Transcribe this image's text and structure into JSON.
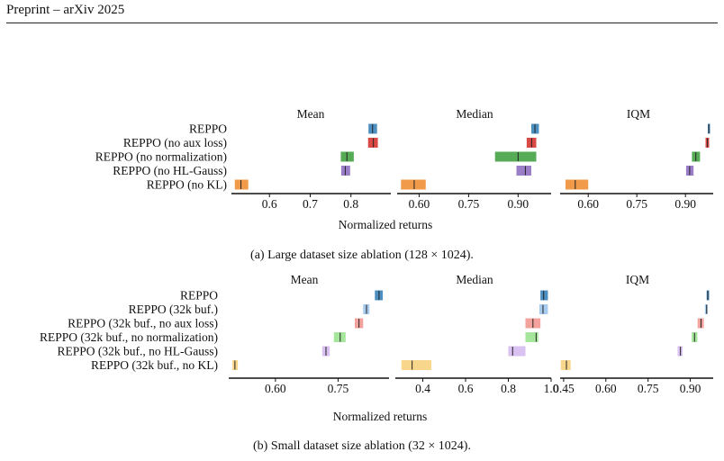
{
  "header": {
    "text": "Preprint – arXiv 2025"
  },
  "xlabel": "Normalized returns",
  "captions": [
    "(a) Large dataset size ablation (128 × 1024).",
    "(b) Small dataset size ablation (32 × 1024)."
  ],
  "chart_data": [
    {
      "type": "interval",
      "methods": [
        "REPPO",
        "REPPO (no aux loss)",
        "REPPO (no normalization)",
        "REPPO (no HL-Gauss)",
        "REPPO (no KL)"
      ],
      "colors": [
        "#4c8fc0",
        "#d94a46",
        "#57ab57",
        "#9b7ec8",
        "#f09a4a"
      ],
      "panels": [
        {
          "title": "Mean",
          "ticks": [
            {
              "v": 0.6,
              "label": "0.6"
            },
            {
              "v": 0.7,
              "label": "0.7"
            },
            {
              "v": 0.8,
              "label": "0.8"
            }
          ],
          "intervals": [
            [
              0.843,
              0.864,
              0.853
            ],
            [
              0.842,
              0.866,
              0.855
            ],
            [
              0.775,
              0.807,
              0.79
            ],
            [
              0.776,
              0.798,
              0.786
            ],
            [
              0.515,
              0.548,
              0.53
            ]
          ]
        },
        {
          "title": "Median",
          "ticks": [
            {
              "v": 0.6,
              "label": "0.60"
            },
            {
              "v": 0.75,
              "label": "0.75"
            },
            {
              "v": 0.9,
              "label": "0.90"
            }
          ],
          "intervals": [
            [
              0.94,
              0.963,
              0.951
            ],
            [
              0.926,
              0.955,
              0.941
            ],
            [
              0.83,
              0.955,
              0.9
            ],
            [
              0.895,
              0.94,
              0.922
            ],
            [
              0.545,
              0.62,
              0.585
            ]
          ]
        },
        {
          "title": "IQM",
          "ticks": [
            {
              "v": 0.6,
              "label": "0.60"
            },
            {
              "v": 0.75,
              "label": "0.75"
            },
            {
              "v": 0.9,
              "label": "0.90"
            }
          ],
          "intervals": [
            [
              0.969,
              0.976,
              0.972
            ],
            [
              0.962,
              0.973,
              0.968
            ],
            [
              0.92,
              0.945,
              0.932
            ],
            [
              0.902,
              0.925,
              0.913
            ],
            [
              0.53,
              0.6,
              0.56
            ]
          ]
        }
      ]
    },
    {
      "type": "interval",
      "methods": [
        "REPPO",
        "REPPO (32k buf.)",
        "REPPO (32k buf., no aux loss)",
        "REPPO (32k buf., no normalization)",
        "REPPO (32k buf., no HL-Gauss)",
        "REPPO (32k buf., no KL)"
      ],
      "colors": [
        "#4c8fc0",
        "#a7cbef",
        "#f3a29e",
        "#a5e59c",
        "#d9c1f2",
        "#f8d78c"
      ],
      "panels": [
        {
          "title": "Mean",
          "ticks": [
            {
              "v": 0.6,
              "label": "0.60"
            },
            {
              "v": 0.75,
              "label": "0.75"
            }
          ],
          "intervals": [
            [
              0.838,
              0.857,
              0.848
            ],
            [
              0.81,
              0.825,
              0.818
            ],
            [
              0.79,
              0.81,
              0.8
            ],
            [
              0.74,
              0.768,
              0.755
            ],
            [
              0.712,
              0.73,
              0.721
            ],
            [
              0.497,
              0.51,
              0.503
            ]
          ]
        },
        {
          "title": "Median",
          "ticks": [
            {
              "v": 0.4,
              "label": "0.4"
            },
            {
              "v": 0.6,
              "label": "0.6"
            },
            {
              "v": 0.8,
              "label": "0.8"
            },
            {
              "v": 1.0,
              "label": "1.0"
            }
          ],
          "intervals": [
            [
              0.95,
              0.985,
              0.965
            ],
            [
              0.945,
              0.985,
              0.962
            ],
            [
              0.88,
              0.95,
              0.915
            ],
            [
              0.88,
              0.94,
              0.93
            ],
            [
              0.8,
              0.88,
              0.82
            ],
            [
              0.3,
              0.44,
              0.35
            ]
          ]
        },
        {
          "title": "IQM",
          "ticks": [
            {
              "v": 0.45,
              "label": "0.45"
            },
            {
              "v": 0.6,
              "label": "0.60"
            },
            {
              "v": 0.75,
              "label": "0.75"
            },
            {
              "v": 0.9,
              "label": "0.90"
            }
          ],
          "intervals": [
            [
              0.958,
              0.967,
              0.962
            ],
            [
              0.952,
              0.962,
              0.958
            ],
            [
              0.926,
              0.948,
              0.938
            ],
            [
              0.905,
              0.925,
              0.915
            ],
            [
              0.855,
              0.872,
              0.865
            ],
            [
              0.44,
              0.475,
              0.46
            ]
          ]
        }
      ]
    }
  ]
}
